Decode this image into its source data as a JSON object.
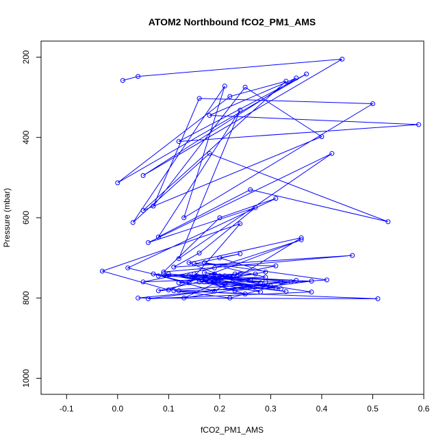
{
  "chart_data": {
    "type": "line",
    "title": "ATOM2 Northbound fCO2_PM1_AMS",
    "xlabel": "fCO2_PM1_AMS",
    "ylabel": "Pressure (mbar)",
    "xlim": [
      -0.15,
      0.6
    ],
    "ylim": [
      1040,
      160
    ],
    "y_reversed": true,
    "x_ticks": [
      "-0.1",
      "0.0",
      "0.1",
      "0.2",
      "0.3",
      "0.4",
      "0.5",
      "0.6"
    ],
    "x_tick_values": [
      -0.1,
      0.0,
      0.1,
      0.2,
      0.3,
      0.4,
      0.5,
      0.6
    ],
    "y_ticks": [
      "200",
      "400",
      "600",
      "800",
      "1000"
    ],
    "y_tick_values": [
      200,
      400,
      600,
      800,
      1000
    ],
    "grid": false,
    "legend": "none",
    "series": [
      {
        "color": "#0000ff",
        "x": [
          0.01,
          0.04,
          0.44,
          0.05,
          0.35,
          0.18,
          0.59,
          0.12,
          0.37,
          0.0,
          0.22,
          0.33,
          0.05,
          0.4,
          0.25,
          0.07,
          0.16,
          0.5,
          0.13,
          0.21,
          0.03,
          0.18,
          0.53,
          0.26,
          0.08,
          0.24,
          0.12,
          0.42,
          0.06,
          0.27,
          0.16,
          0.11,
          0.46,
          0.09,
          0.2,
          0.31,
          0.02,
          0.14,
          0.24,
          -0.03,
          0.1,
          0.36,
          0.19,
          0.05,
          0.29,
          0.17,
          0.41,
          0.08,
          0.23,
          0.13,
          0.32,
          0.06,
          0.38,
          0.15,
          0.26,
          0.04,
          0.51,
          0.11,
          0.22,
          0.35,
          0.09,
          0.28,
          0.14,
          0.36,
          0.19,
          0.07,
          0.31,
          0.12,
          0.25,
          0.17,
          0.21,
          0.33,
          0.1,
          0.29,
          0.15,
          0.23,
          0.38,
          0.08,
          0.27,
          0.16,
          0.34,
          0.2,
          0.12,
          0.3,
          0.18,
          0.24,
          0.14,
          0.32,
          0.22,
          0.28,
          0.17,
          0.19,
          0.26,
          0.21,
          0.31,
          0.15,
          0.24,
          0.2,
          0.29,
          0.18
        ],
        "y": [
          258,
          248,
          205,
          495,
          252,
          345,
          368,
          410,
          242,
          513,
          298,
          260,
          582,
          398,
          275,
          571,
          303,
          316,
          600,
          272,
          612,
          440,
          610,
          530,
          648,
          332,
          702,
          440,
          662,
          575,
          688,
          723,
          694,
          735,
          600,
          552,
          725,
          762,
          615,
          733,
          780,
          655,
          725,
          760,
          748,
          712,
          755,
          782,
          740,
          800,
          760,
          802,
          785,
          740,
          772,
          800,
          802,
          782,
          800,
          756,
          740,
          785,
          712,
          650,
          783,
          740,
          775,
          782,
          790,
          760,
          765,
          784,
          740,
          760,
          748,
          782,
          758,
          745,
          740,
          760,
          760,
          745,
          762,
          770,
          760,
          740,
          745,
          777,
          748,
          762,
          737,
          740,
          755,
          745,
          720,
          715,
          690,
          700,
          735,
          760
        ]
      }
    ]
  }
}
